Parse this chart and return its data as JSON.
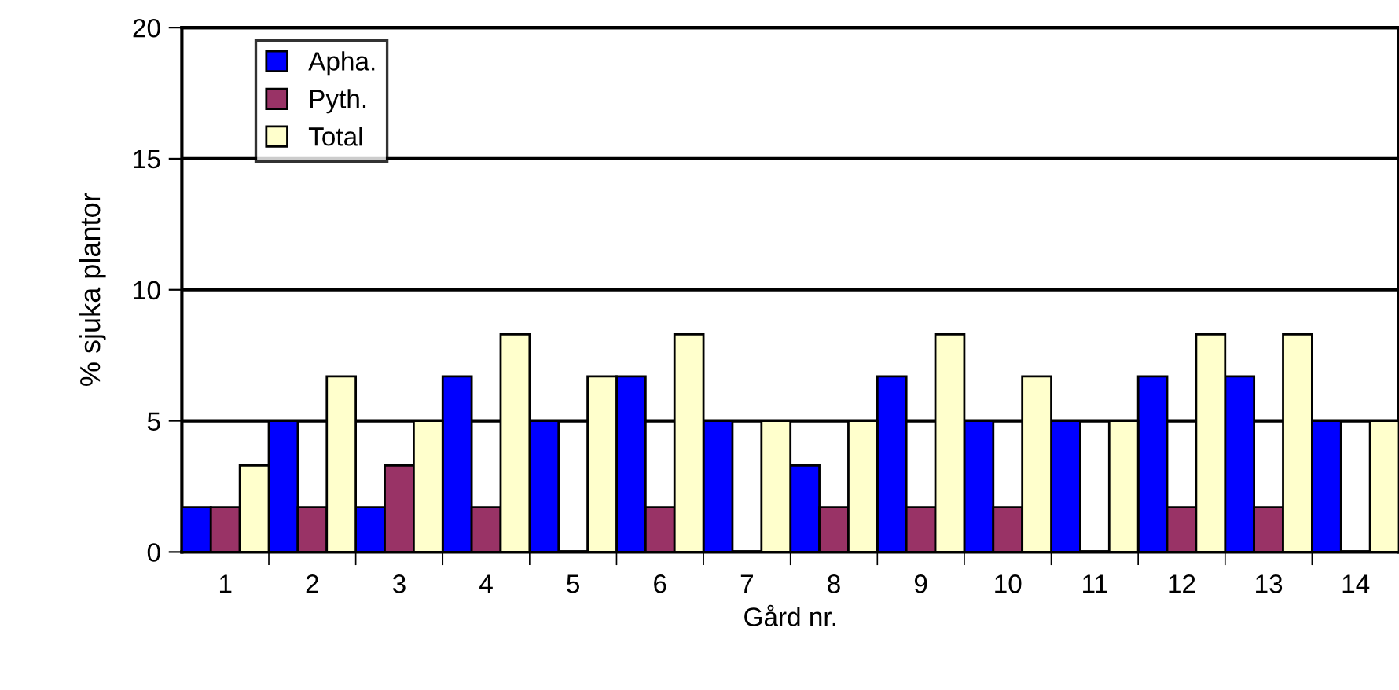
{
  "chart_data": {
    "type": "bar",
    "xlabel": "Gård nr.",
    "ylabel": "% sjuka plantor",
    "categories": [
      "1",
      "2",
      "3",
      "4",
      "5",
      "6",
      "7",
      "8",
      "9",
      "10",
      "11",
      "12",
      "13",
      "14"
    ],
    "series": [
      {
        "name": "Apha.",
        "color": "#0000ff",
        "values": [
          1.7,
          5,
          1.7,
          6.7,
          5,
          6.7,
          5,
          3.3,
          6.7,
          5,
          5,
          6.7,
          6.7,
          5
        ]
      },
      {
        "name": "Pyth.",
        "color": "#993366",
        "values": [
          1.7,
          1.7,
          3.3,
          1.7,
          null,
          1.7,
          null,
          1.7,
          1.7,
          1.7,
          null,
          1.7,
          1.7,
          null
        ]
      },
      {
        "name": "Total",
        "color": "#ffffcc",
        "values": [
          3.3,
          6.7,
          5,
          8.3,
          6.7,
          8.3,
          5,
          5,
          8.3,
          6.7,
          5,
          8.3,
          8.3,
          5
        ]
      }
    ],
    "ylim": [
      0,
      20
    ],
    "yticks": [
      0,
      5,
      10,
      15,
      20
    ],
    "grid": "y",
    "legend": "top left"
  }
}
